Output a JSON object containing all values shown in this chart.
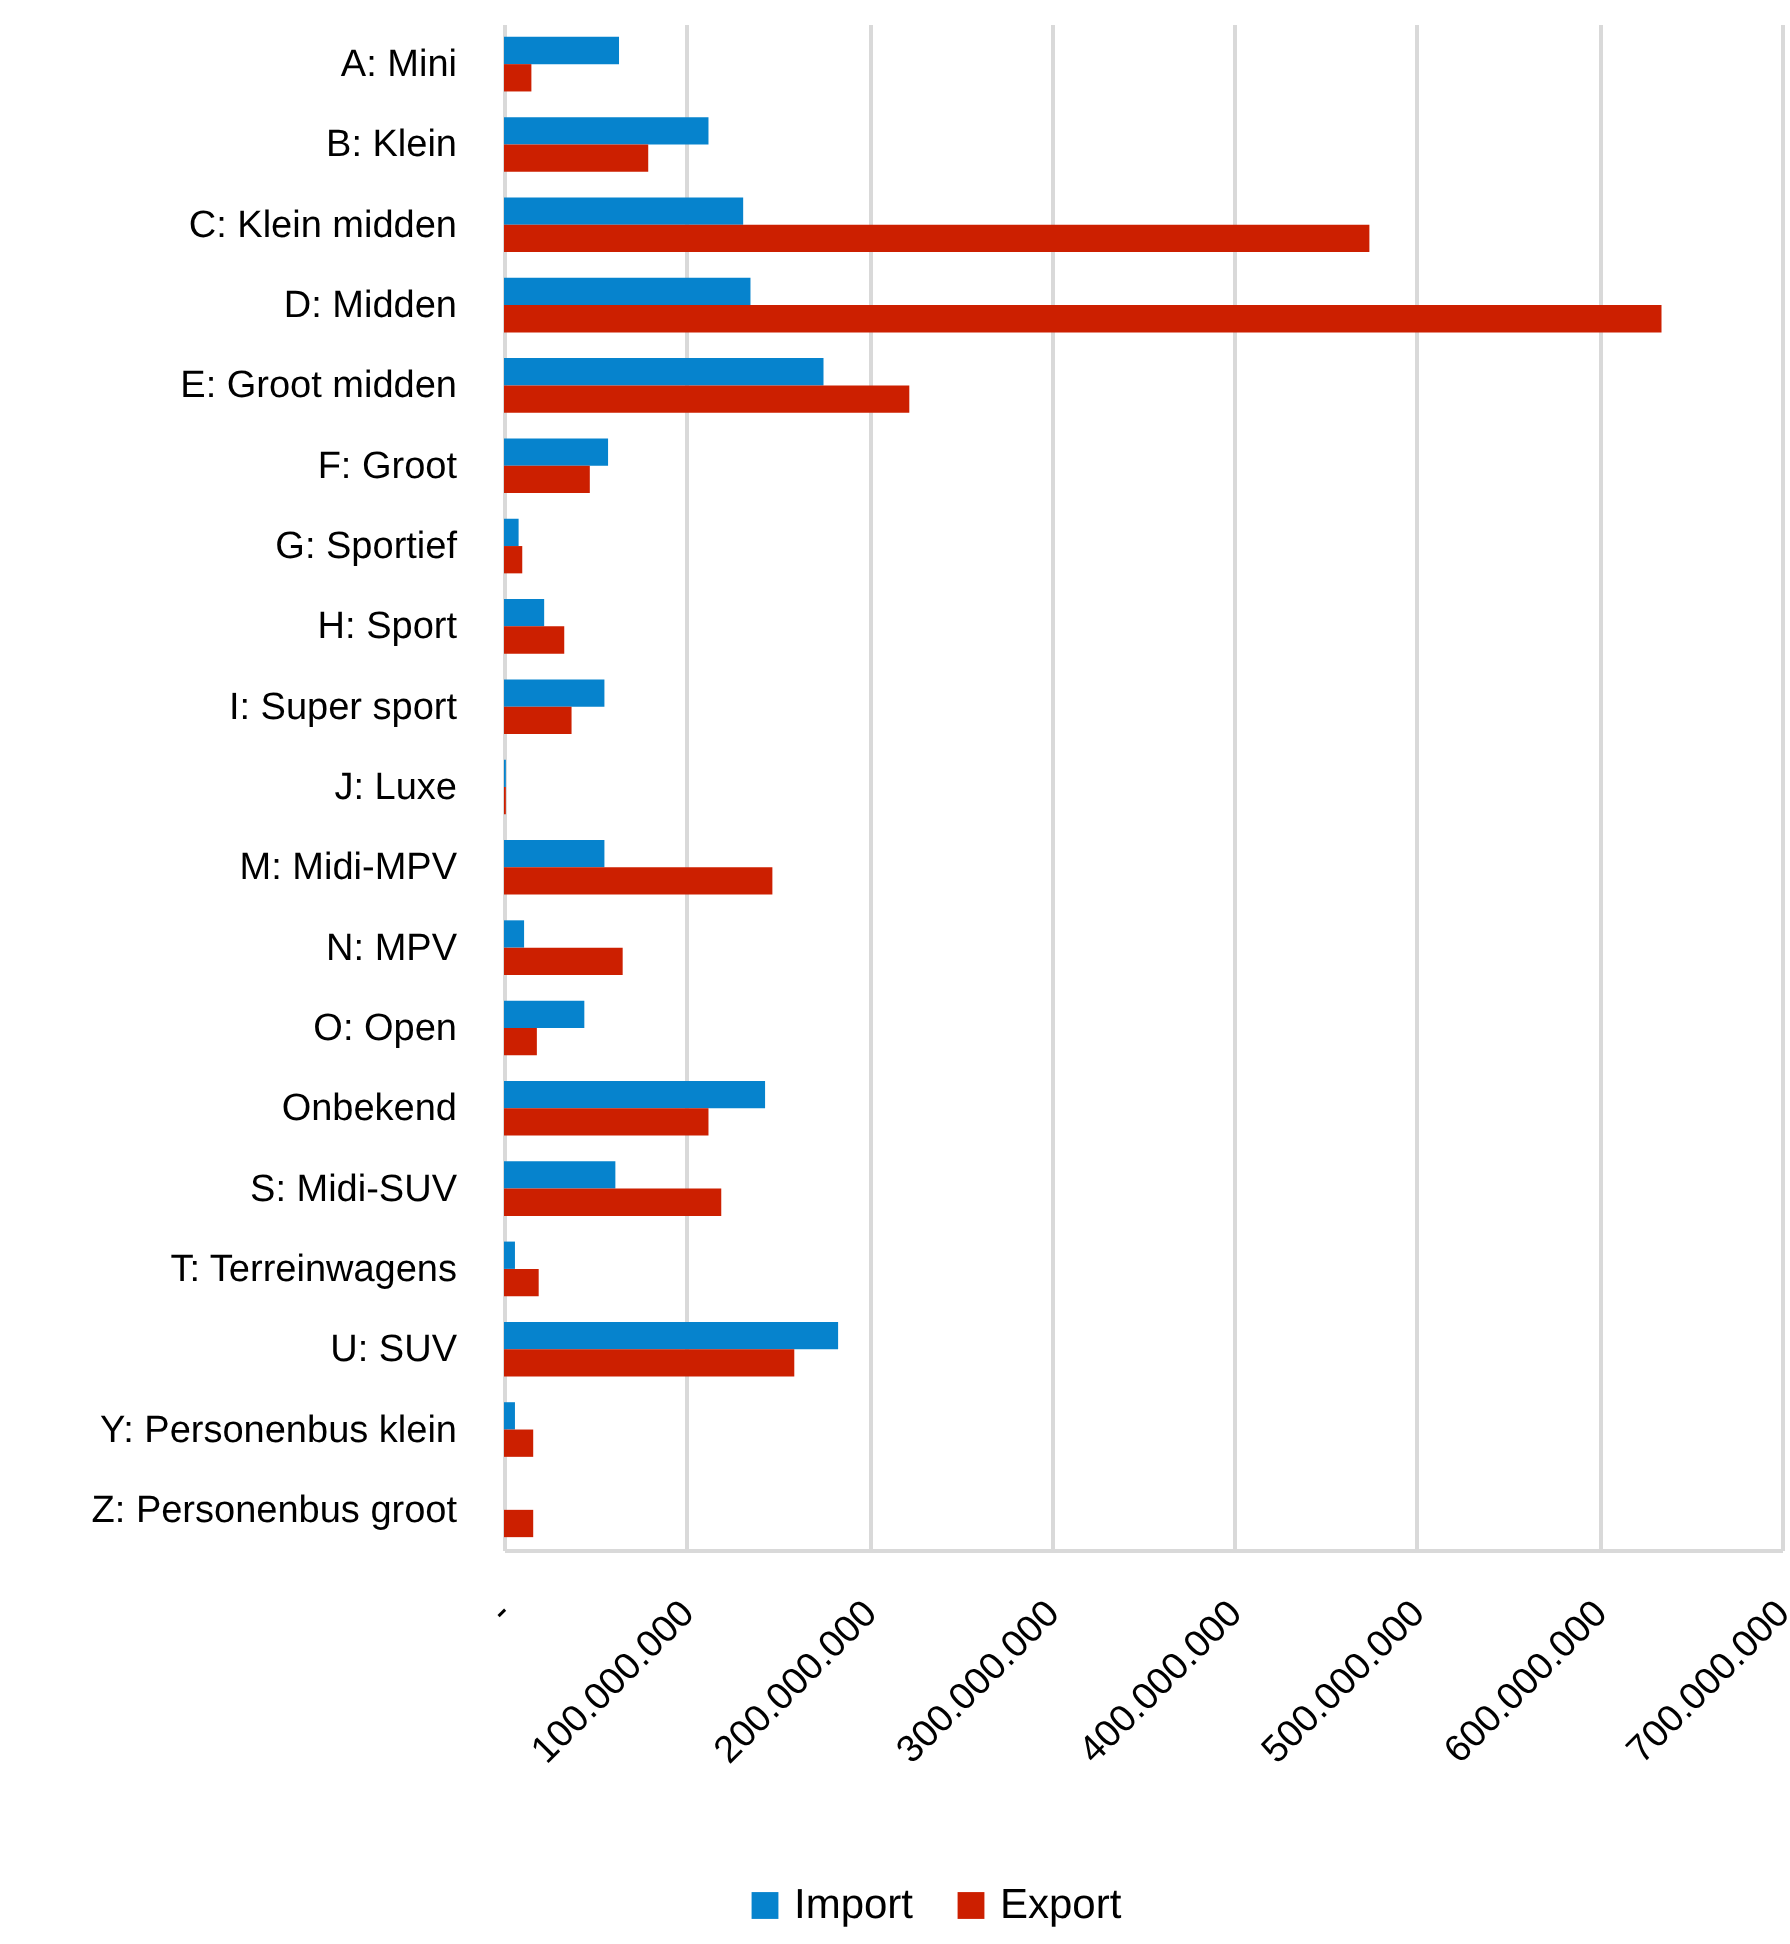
{
  "chart_data": {
    "type": "bar",
    "orientation": "horizontal",
    "categories": [
      "A: Mini",
      "B: Klein",
      "C: Klein midden",
      "D: Midden",
      "E: Groot midden",
      "F: Groot",
      "G: Sportief",
      "H: Sport",
      "I: Super sport",
      "J: Luxe",
      "M: Midi-MPV",
      "N: MPV",
      "O: Open",
      "Onbekend",
      "S: Midi-SUV",
      "T: Terreinwagens",
      "U: SUV",
      "Y: Personenbus klein",
      "Z: Personenbus groot"
    ],
    "series": [
      {
        "name": "Import",
        "color": "#0683cd",
        "values": [
          63000000,
          112000000,
          131000000,
          135000000,
          175000000,
          57000000,
          8000000,
          22000000,
          55000000,
          1000000,
          55000000,
          11000000,
          44000000,
          143000000,
          61000000,
          6000000,
          183000000,
          6000000,
          null
        ]
      },
      {
        "name": "Export",
        "color": "#cc1f00",
        "values": [
          15000000,
          79000000,
          474000000,
          634000000,
          222000000,
          47000000,
          10000000,
          33000000,
          37000000,
          1000000,
          147000000,
          65000000,
          18000000,
          112000000,
          119000000,
          19000000,
          159000000,
          16000000,
          16000000
        ]
      }
    ],
    "xlim": [
      0,
      700000000
    ],
    "xticks": [
      {
        "value": 0,
        "label": "-"
      },
      {
        "value": 100000000,
        "label": "100.000.000"
      },
      {
        "value": 200000000,
        "label": "200.000.000"
      },
      {
        "value": 300000000,
        "label": "300.000.000"
      },
      {
        "value": 400000000,
        "label": "400.000.000"
      },
      {
        "value": 500000000,
        "label": "500.000.000"
      },
      {
        "value": 600000000,
        "label": "600.000.000"
      },
      {
        "value": 700000000,
        "label": "700.000.000"
      }
    ],
    "grid": "x",
    "legend": "bottom"
  }
}
